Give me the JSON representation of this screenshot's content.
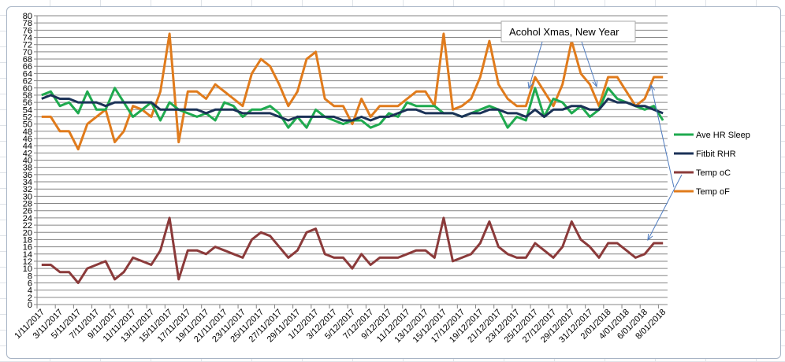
{
  "chart_data": {
    "type": "line",
    "title": "",
    "xlabel": "",
    "ylabel": "",
    "ylim": [
      0,
      80
    ],
    "ytick_step": 2,
    "grid": true,
    "legend_position": "right",
    "x_tick_labels": [
      "1/11/2017",
      "3/11/2017",
      "5/11/2017",
      "7/11/2017",
      "9/11/2017",
      "11/11/2017",
      "13/11/2017",
      "15/11/2017",
      "17/11/2017",
      "19/11/2017",
      "21/11/2017",
      "23/11/2017",
      "25/11/2017",
      "27/11/2017",
      "29/11/2017",
      "1/12/2017",
      "3/12/2017",
      "5/12/2017",
      "7/12/2017",
      "9/12/2017",
      "11/12/2017",
      "13/12/2017",
      "15/12/2017",
      "17/12/2017",
      "19/12/2017",
      "21/12/2017",
      "23/12/2017",
      "25/12/2017",
      "27/12/2017",
      "29/12/2017",
      "31/12/2017",
      "2/01/2018",
      "4/01/2018",
      "6/01/2018",
      "8/01/2018"
    ],
    "series": [
      {
        "name": "Ave HR Sleep",
        "color": "#1faa4f",
        "values": [
          58,
          59,
          55,
          56,
          53,
          59,
          54,
          54,
          60,
          56,
          52,
          54,
          56,
          51,
          56,
          54,
          53,
          52,
          53,
          51,
          56,
          55,
          52,
          54,
          54,
          55,
          53,
          49,
          52,
          49,
          54,
          52,
          51,
          50,
          51,
          51,
          49,
          50,
          53,
          52,
          56,
          55,
          55,
          55,
          53,
          53,
          52,
          53,
          54,
          55,
          54,
          49,
          52,
          51,
          60,
          52,
          57,
          56,
          53,
          55,
          52,
          54,
          60,
          57,
          56,
          55,
          54,
          55,
          51
        ]
      },
      {
        "name": "Fitbit RHR",
        "color": "#1b3257",
        "values": [
          57,
          58,
          57,
          57,
          56,
          56,
          56,
          55,
          56,
          56,
          56,
          56,
          56,
          54,
          54,
          54,
          54,
          54,
          53,
          54,
          54,
          54,
          53,
          53,
          53,
          53,
          52,
          51,
          52,
          52,
          52,
          52,
          52,
          51,
          51,
          52,
          51,
          52,
          52,
          53,
          54,
          54,
          53,
          53,
          53,
          53,
          52,
          53,
          53,
          54,
          54,
          53,
          53,
          52,
          54,
          52,
          54,
          54,
          55,
          55,
          54,
          54,
          57,
          56,
          56,
          55,
          55,
          54,
          53
        ]
      },
      {
        "name": "Temp oC",
        "color": "#8b3a3a",
        "values": [
          11,
          11,
          9,
          9,
          6,
          10,
          11,
          12,
          7,
          9,
          13,
          12,
          11,
          15,
          24,
          7,
          15,
          15,
          14,
          16,
          15,
          14,
          13,
          18,
          20,
          19,
          16,
          13,
          15,
          20,
          21,
          14,
          13,
          13,
          10,
          14,
          11,
          13,
          13,
          13,
          14,
          15,
          15,
          13,
          24,
          12,
          13,
          14,
          17,
          23,
          16,
          14,
          13,
          13,
          17,
          15,
          13,
          16,
          23,
          18,
          16,
          13,
          17,
          17,
          15,
          13,
          14,
          17,
          17
        ]
      },
      {
        "name": "Temp oF",
        "color": "#e07b1c",
        "values": [
          52,
          52,
          48,
          48,
          43,
          50,
          52,
          54,
          45,
          48,
          55,
          54,
          52,
          59,
          75,
          45,
          59,
          59,
          57,
          61,
          59,
          57,
          55,
          64,
          68,
          66,
          61,
          55,
          59,
          68,
          70,
          57,
          55,
          55,
          50,
          57,
          52,
          55,
          55,
          55,
          57,
          59,
          59,
          55,
          75,
          54,
          55,
          57,
          63,
          73,
          61,
          57,
          55,
          55,
          63,
          59,
          55,
          61,
          73,
          64,
          61,
          55,
          63,
          63,
          59,
          55,
          57,
          63,
          63
        ]
      }
    ],
    "annotations": [
      {
        "text": "Acohol Xmas, New Year"
      }
    ]
  }
}
